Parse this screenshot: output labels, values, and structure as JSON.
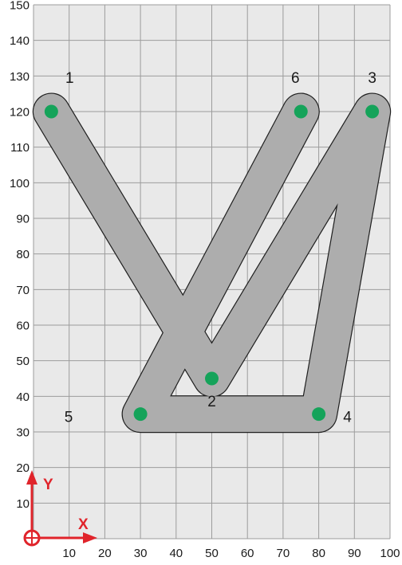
{
  "colors": {
    "plot_background": "#e9e9e9",
    "grid": "#9c9c9c",
    "toolpath_fill": "#adadad",
    "toolpath_outline": "#1f1f1f",
    "point_marker": "#15a35a",
    "axis_indicator": "#e0242b"
  },
  "axes": {
    "x_ticks": [
      "10",
      "20",
      "30",
      "40",
      "50",
      "60",
      "70",
      "80",
      "90",
      "100"
    ],
    "y_ticks": [
      "10",
      "20",
      "30",
      "40",
      "50",
      "60",
      "70",
      "80",
      "90",
      "100",
      "110",
      "120",
      "130",
      "140",
      "150"
    ],
    "x_range": [
      0,
      100
    ],
    "y_range": [
      0,
      150
    ],
    "grid": true
  },
  "indicator": {
    "x_label": "X",
    "y_label": "Y"
  },
  "points": [
    {
      "label": "1",
      "x": 5,
      "y": 120
    },
    {
      "label": "2",
      "x": 50,
      "y": 45
    },
    {
      "label": "3",
      "x": 95,
      "y": 120
    },
    {
      "label": "4",
      "x": 80,
      "y": 35
    },
    {
      "label": "5",
      "x": 30,
      "y": 35
    },
    {
      "label": "6",
      "x": 75,
      "y": 120
    }
  ],
  "path_order": [
    "1",
    "2",
    "3",
    "4",
    "5",
    "6"
  ],
  "tool_diameter": 10
}
